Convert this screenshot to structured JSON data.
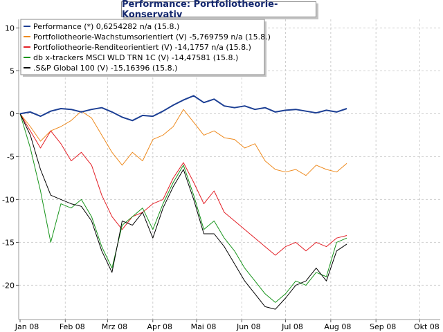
{
  "chart_data": {
    "type": "line",
    "title": "Performance: Portfoliotheorie-Konservativ",
    "xlabel": "",
    "ylabel": "",
    "x_ticks": [
      "Jan 08",
      "Feb 08",
      "Mrz 08",
      "Apr 08",
      "Mai 08",
      "Jun 08",
      "Jul 08",
      "Aug 08",
      "Sep 08",
      "Okt 08"
    ],
    "x_range_days": [
      0,
      289
    ],
    "ylim": [
      -24,
      11
    ],
    "y_ticks": [
      10,
      5,
      0,
      -5,
      -10,
      -15,
      -20
    ],
    "grid": true,
    "legend_position": "top-left",
    "series": [
      {
        "name": "Performance (*) 0,6254282 n/a (15.8.)",
        "color": "#1c3f94",
        "x": [
          0,
          7,
          14,
          21,
          28,
          35,
          42,
          49,
          56,
          63,
          70,
          77,
          84,
          91,
          98,
          105,
          112,
          119,
          126,
          133,
          140,
          147,
          154,
          161,
          168,
          175,
          182,
          189,
          196,
          203,
          210,
          217,
          224
        ],
        "y": [
          0,
          0.2,
          -0.3,
          0.3,
          0.6,
          0.5,
          0.2,
          0.5,
          0.7,
          0.2,
          -0.4,
          -0.8,
          -0.2,
          -0.3,
          0.3,
          1.0,
          1.6,
          2.1,
          1.3,
          1.7,
          0.9,
          0.7,
          0.9,
          0.5,
          0.7,
          0.2,
          0.4,
          0.5,
          0.3,
          0.1,
          0.4,
          0.2,
          0.6
        ]
      },
      {
        "name": "Portfoliotheorie-Wachstumsorientiert (V) -5,769759 n/a (15.8.)",
        "color": "#ee8a1e",
        "x": [
          0,
          7,
          14,
          21,
          28,
          35,
          42,
          49,
          56,
          63,
          70,
          77,
          84,
          91,
          98,
          105,
          112,
          119,
          126,
          133,
          140,
          147,
          154,
          161,
          168,
          175,
          182,
          189,
          196,
          203,
          210,
          217,
          224
        ],
        "y": [
          0,
          -1.5,
          -3.2,
          -2.0,
          -1.5,
          -0.8,
          0.3,
          -0.5,
          -2.5,
          -4.5,
          -6.0,
          -4.5,
          -5.5,
          -3.0,
          -2.5,
          -1.5,
          0.5,
          -1.0,
          -2.5,
          -2.0,
          -2.8,
          -3.0,
          -4.0,
          -3.5,
          -5.5,
          -6.5,
          -6.8,
          -6.5,
          -7.2,
          -6.0,
          -6.5,
          -6.8,
          -5.8
        ]
      },
      {
        "name": "Portfoliotheorie-Renditeorientiert (V) -14,1757 n/a (15.8.)",
        "color": "#e31f26",
        "x": [
          0,
          7,
          14,
          21,
          28,
          35,
          42,
          49,
          56,
          63,
          70,
          77,
          84,
          91,
          98,
          105,
          112,
          119,
          126,
          133,
          140,
          147,
          154,
          161,
          168,
          175,
          182,
          189,
          196,
          203,
          210,
          217,
          224
        ],
        "y": [
          0,
          -2.0,
          -4.0,
          -2.0,
          -3.5,
          -5.5,
          -4.5,
          -6.0,
          -9.5,
          -12.0,
          -13.5,
          -12.0,
          -11.5,
          -10.5,
          -10.0,
          -7.5,
          -5.7,
          -8.0,
          -10.5,
          -9.0,
          -11.5,
          -12.5,
          -13.5,
          -14.5,
          -15.5,
          -16.5,
          -15.5,
          -15.0,
          -16.0,
          -15.0,
          -15.5,
          -14.5,
          -14.2
        ]
      },
      {
        "name": "db x-trackers MSCI WLD TRN 1C (V) -14,47581 (15.8.)",
        "color": "#17941b",
        "x": [
          0,
          7,
          14,
          21,
          28,
          35,
          42,
          49,
          56,
          63,
          70,
          77,
          84,
          91,
          98,
          105,
          112,
          119,
          126,
          133,
          140,
          147,
          154,
          161,
          168,
          175,
          182,
          189,
          196,
          203,
          210,
          217,
          224
        ],
        "y": [
          0,
          -4.0,
          -9.0,
          -15.0,
          -10.5,
          -11.0,
          -10.0,
          -12.0,
          -15.5,
          -18.0,
          -13.0,
          -12.0,
          -11.0,
          -13.5,
          -10.5,
          -8.0,
          -6.0,
          -9.5,
          -13.5,
          -12.5,
          -14.5,
          -16.0,
          -18.0,
          -19.5,
          -21.0,
          -22.0,
          -21.0,
          -19.5,
          -20.0,
          -18.5,
          -19.0,
          -15.0,
          -14.5
        ]
      },
      {
        "name": ".S&P Global 100 (V) -15,16396 (15.8.)",
        "color": "#000000",
        "x": [
          0,
          7,
          14,
          21,
          28,
          35,
          42,
          49,
          56,
          63,
          70,
          77,
          84,
          91,
          98,
          105,
          112,
          119,
          126,
          133,
          140,
          147,
          154,
          161,
          168,
          175,
          182,
          189,
          196,
          203,
          210,
          217,
          224
        ],
        "y": [
          0,
          -2.5,
          -6.5,
          -9.5,
          -10.0,
          -10.5,
          -10.8,
          -12.5,
          -16.0,
          -18.5,
          -12.5,
          -13.0,
          -11.5,
          -14.5,
          -11.0,
          -8.5,
          -6.5,
          -10.0,
          -14.0,
          -14.0,
          -15.5,
          -17.5,
          -19.5,
          -21.0,
          -22.5,
          -22.8,
          -21.5,
          -20.0,
          -19.5,
          -18.0,
          -19.5,
          -16.0,
          -15.2
        ]
      }
    ]
  }
}
